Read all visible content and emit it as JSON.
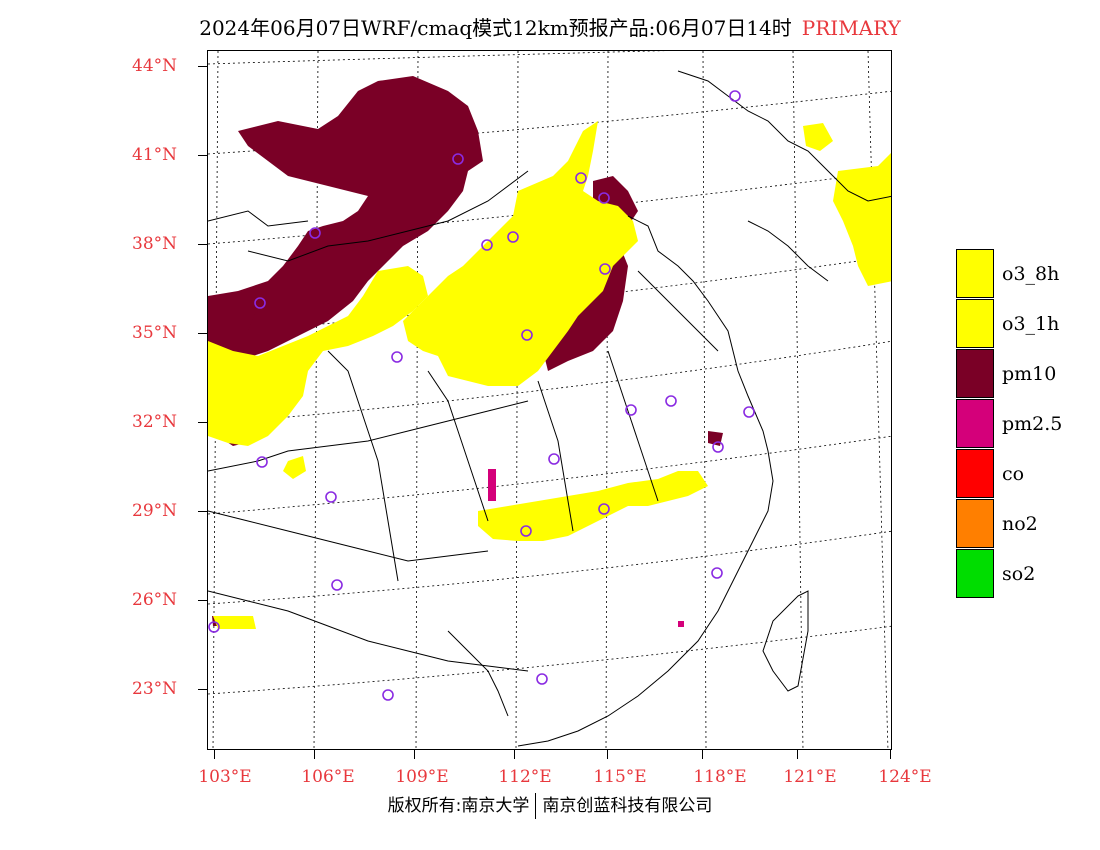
{
  "title": {
    "main": "2024年06月07日WRF/cmaq模式12km预报产品:06月07日14时",
    "tag": "PRIMARY"
  },
  "axes": {
    "latitudes": [
      "44°N",
      "41°N",
      "38°N",
      "35°N",
      "32°N",
      "29°N",
      "26°N",
      "23°N"
    ],
    "longitudes": [
      "103°E",
      "106°E",
      "109°E",
      "112°E",
      "115°E",
      "118°E",
      "121°E",
      "124°E"
    ]
  },
  "legend": [
    {
      "label": "o3_8h",
      "color": "#ffff00"
    },
    {
      "label": "o3_1h",
      "color": "#ffff00"
    },
    {
      "label": "pm10",
      "color": "#7a0026"
    },
    {
      "label": "pm2.5",
      "color": "#d4007a"
    },
    {
      "label": "co",
      "color": "#ff0000"
    },
    {
      "label": "no2",
      "color": "#ff7f00"
    },
    {
      "label": "so2",
      "color": "#00dd00"
    }
  ],
  "footer": {
    "left": "版权所有:南京大学",
    "right": "南京创蓝科技有限公司"
  },
  "colors": {
    "axis_text": "#e8383d",
    "pm10": "#7a0026",
    "o3": "#ffff00",
    "pm25": "#d4007a",
    "station": "#8a2be2"
  }
}
